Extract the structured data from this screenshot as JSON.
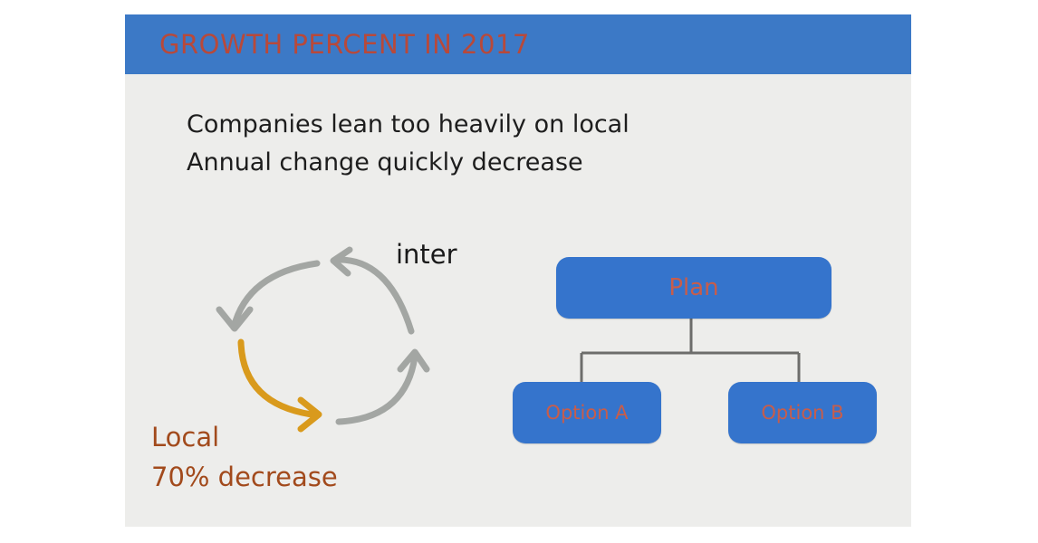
{
  "header": {
    "title": "GROWTH PERCENT IN 2017"
  },
  "body_text": {
    "line1": "Companies lean too heavily on local",
    "line2": "Annual change quickly decrease"
  },
  "cycle": {
    "inter_label": "inter",
    "local_label": "Local",
    "local_value": "70% decrease"
  },
  "org_chart": {
    "root": "Plan",
    "children": [
      "Option A",
      "Option B"
    ]
  },
  "colors": {
    "header_bar": "#3c79c6",
    "header_text": "#b8493a",
    "slide_bg": "#ededeb",
    "cycle_gray": "#a3a6a3",
    "cycle_orange": "#d99a1c",
    "local_text": "#a24a1c",
    "node_fill": "#3574cc",
    "node_text": "#c85d4a"
  }
}
